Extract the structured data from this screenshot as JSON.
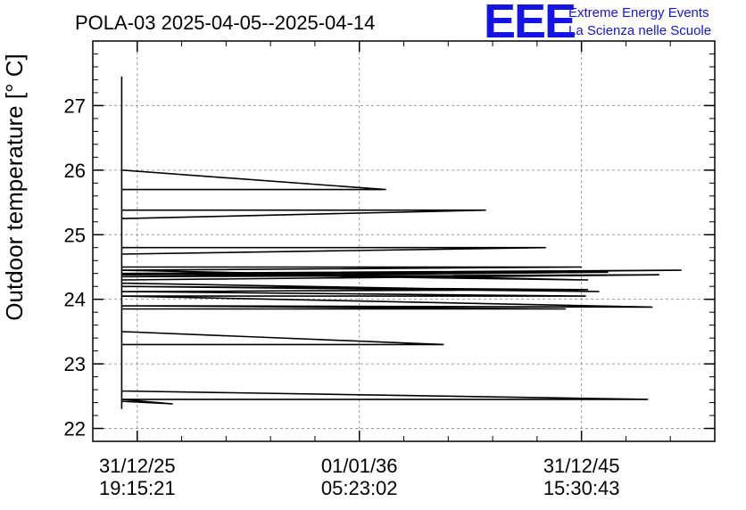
{
  "chart_data": {
    "type": "line",
    "title": "POLA-03 2025-04-05--2025-04-14",
    "xlabel": "",
    "ylabel": "Outdoor temperature [° C]",
    "ylim": [
      21.8,
      28.0
    ],
    "yticks": [
      22,
      23,
      24,
      25,
      26,
      27
    ],
    "xlim": [
      -0.2,
      2.6
    ],
    "xticks": [
      {
        "pos": 0,
        "line1": "31/12/25",
        "line2": "19:15:21"
      },
      {
        "pos": 1,
        "line1": "01/01/36",
        "line2": "05:23:02"
      },
      {
        "pos": 2,
        "line1": "31/12/45",
        "line2": "15:30:43"
      }
    ],
    "grid": true,
    "series": [
      {
        "name": "Outdoor temperature",
        "color": "#000000",
        "points": [
          [
            -0.07,
            27.45
          ],
          [
            -0.07,
            22.3
          ],
          [
            -0.07,
            22.42
          ],
          [
            0.16,
            22.38
          ],
          [
            -0.07,
            22.45
          ],
          [
            2.3,
            22.45
          ],
          [
            -0.07,
            22.58
          ],
          [
            -0.07,
            23.3
          ],
          [
            1.38,
            23.3
          ],
          [
            -0.07,
            23.5
          ],
          [
            -0.07,
            23.85
          ],
          [
            1.93,
            23.85
          ],
          [
            -0.07,
            23.9
          ],
          [
            2.32,
            23.88
          ],
          [
            -0.07,
            24.05
          ],
          [
            2.02,
            24.05
          ],
          [
            -0.07,
            24.12
          ],
          [
            2.03,
            24.15
          ],
          [
            -0.07,
            24.2
          ],
          [
            2.08,
            24.12
          ],
          [
            -0.07,
            24.25
          ],
          [
            -0.07,
            24.3
          ],
          [
            2.35,
            24.38
          ],
          [
            -0.07,
            24.35
          ],
          [
            2.12,
            24.42
          ],
          [
            -0.07,
            24.38
          ],
          [
            2.45,
            24.45
          ],
          [
            -0.07,
            24.4
          ],
          [
            2.03,
            24.3
          ],
          [
            -0.07,
            24.45
          ],
          [
            2.0,
            24.5
          ],
          [
            -0.07,
            24.5
          ],
          [
            -0.07,
            24.7
          ],
          [
            1.84,
            24.8
          ],
          [
            -0.07,
            24.8
          ],
          [
            -0.07,
            25.25
          ],
          [
            1.57,
            25.38
          ],
          [
            -0.07,
            25.38
          ],
          [
            -0.07,
            25.7
          ],
          [
            1.12,
            25.7
          ],
          [
            -0.07,
            26.0
          ],
          [
            -0.07,
            26.9
          ],
          [
            -0.07,
            22.6
          ]
        ]
      }
    ]
  },
  "logo": {
    "letters": "EEE",
    "line1": "Extreme Energy Events",
    "line2": "La Scienza nelle Scuole",
    "color": "#1414e6"
  }
}
